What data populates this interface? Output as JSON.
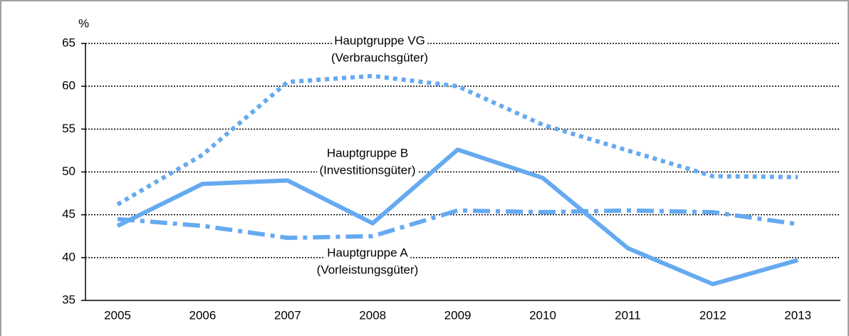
{
  "chart_data": {
    "type": "line",
    "y_label": "%",
    "categories": [
      "2005",
      "2006",
      "2007",
      "2008",
      "2009",
      "2010",
      "2011",
      "2012",
      "2013"
    ],
    "series": [
      {
        "color": "#66aaf0",
        "style": "dotted",
        "values": [
          46.2,
          52,
          60.5,
          61.2,
          60,
          55.5,
          52.5,
          49.5,
          49.4
        ]
      },
      {
        "color": "#66aaf0",
        "style": "solid",
        "values": [
          43.7,
          48.6,
          49,
          44,
          52.6,
          49.3,
          41.1,
          36.9,
          39.7
        ]
      },
      {
        "color": "#66aaf0",
        "style": "dashdot",
        "values": [
          44.5,
          43.7,
          42.3,
          42.5,
          45.5,
          45.3,
          45.5,
          45.3,
          43.9
        ]
      }
    ],
    "annotations": [
      [
        "Hauptgruppe VG",
        "(Verbrauchsgüter)"
      ],
      [
        "Hauptgruppe B",
        "(Investitionsgüter)"
      ],
      [
        "Hauptgruppe A",
        "(Vorleistungsgüter)"
      ]
    ],
    "ylim": [
      35,
      65
    ],
    "yticks": [
      35,
      40,
      45,
      50,
      55,
      60,
      65
    ],
    "grid": true
  }
}
